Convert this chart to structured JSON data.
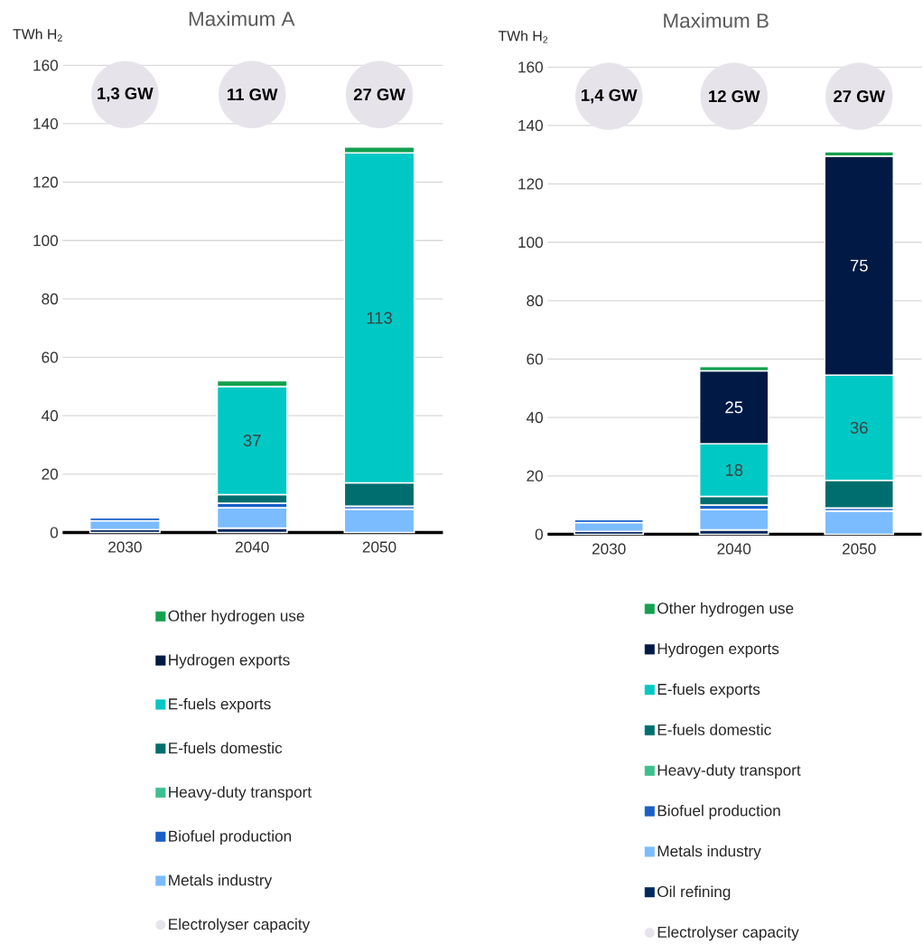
{
  "chart_data": [
    {
      "type": "bar",
      "stacked": true,
      "title": "Maximum A",
      "ylabel": "TWh H$_{2}$",
      "categories": [
        "2030",
        "2040",
        "2050"
      ],
      "ylim": [
        0,
        160
      ],
      "yticks": [
        0,
        20,
        40,
        60,
        80,
        100,
        120,
        140,
        160
      ],
      "grid": "y",
      "legend": "bottom",
      "series": [
        {
          "color": "#00275e",
          "values": [
            1,
            1.5,
            0
          ]
        },
        {
          "name": "Metals industry",
          "color": "#7bbcff",
          "values": [
            3,
            7,
            8
          ]
        },
        {
          "name": "Biofuel production",
          "color": "#1a5fc6",
          "values": [
            1,
            1.5,
            1
          ]
        },
        {
          "name": "Heavy-duty transport",
          "color": "#3cc08f",
          "values": [
            0,
            0,
            0
          ]
        },
        {
          "name": "E-fuels domestic",
          "color": "#006e6e",
          "values": [
            0,
            3,
            8
          ]
        },
        {
          "name": "E-fuels exports",
          "color": "#00c8c4",
          "values": [
            0,
            37,
            113
          ],
          "value_labels": [
            null,
            "37",
            "113"
          ]
        },
        {
          "name": "Hydrogen exports",
          "color": "#001a45",
          "values": [
            0,
            0,
            0
          ]
        },
        {
          "name": "Other hydrogen use",
          "color": "#13a04f",
          "values": [
            0,
            2,
            2
          ]
        },
        {
          "name": "Electrolyser capacity",
          "type": "scatter",
          "marker": "circle",
          "color": "#e6e4ea",
          "values": [
            150,
            150,
            150
          ]
        }
      ],
      "annotations": [
        {
          "text": "1,3 GW",
          "x": "2030",
          "y": 150
        },
        {
          "text": "11 GW",
          "x": "2040",
          "y": 150
        },
        {
          "text": "27 GW",
          "x": "2050",
          "y": 150
        }
      ]
    },
    {
      "type": "bar",
      "stacked": true,
      "title": "Maximum B",
      "ylabel": "TWh H$_{2}$",
      "categories": [
        "2030",
        "2040",
        "2050"
      ],
      "ylim": [
        0,
        160
      ],
      "yticks": [
        0,
        20,
        40,
        60,
        80,
        100,
        120,
        140,
        160
      ],
      "grid": "y",
      "legend": "bottom",
      "series": [
        {
          "name": "Oil refining",
          "color": "#00275e",
          "values": [
            1,
            1.5,
            0
          ]
        },
        {
          "name": "Metals industry",
          "color": "#7bbcff",
          "values": [
            3,
            7,
            8
          ]
        },
        {
          "name": "Biofuel production",
          "color": "#1a5fc6",
          "values": [
            1,
            1.5,
            1
          ]
        },
        {
          "name": "Heavy-duty transport",
          "color": "#3cc08f",
          "values": [
            0,
            0,
            0
          ]
        },
        {
          "name": "E-fuels domestic",
          "color": "#006e6e",
          "values": [
            0,
            3,
            9.5
          ]
        },
        {
          "name": "E-fuels exports",
          "color": "#00c8c4",
          "values": [
            0,
            18,
            36
          ],
          "value_labels": [
            null,
            "18",
            "36"
          ]
        },
        {
          "name": "Hydrogen exports",
          "color": "#001a45",
          "values": [
            0,
            25,
            75
          ],
          "value_labels": [
            null,
            "25",
            "75"
          ]
        },
        {
          "name": "Other hydrogen use",
          "color": "#13a04f",
          "values": [
            0,
            1.5,
            1.5
          ]
        },
        {
          "name": "Electrolyser capacity",
          "type": "scatter",
          "marker": "circle",
          "color": "#e6e4ea",
          "values": [
            150,
            150,
            150
          ]
        }
      ],
      "annotations": [
        {
          "text": "1,4 GW",
          "x": "2030",
          "y": 150
        },
        {
          "text": "12 GW",
          "x": "2040",
          "y": 150
        },
        {
          "text": "27 GW",
          "x": "2050",
          "y": 150
        }
      ]
    }
  ]
}
